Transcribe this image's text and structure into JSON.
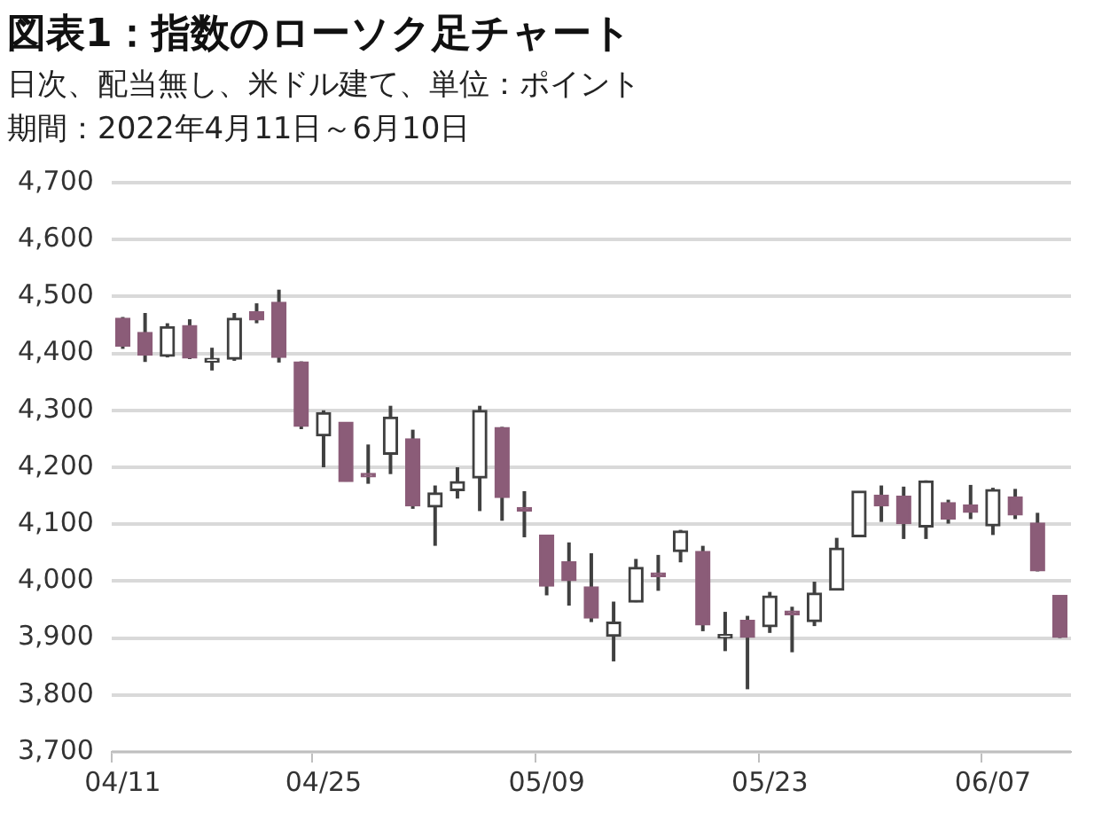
{
  "chart_data": {
    "type": "candlestick",
    "title": "図表1：指数のローソク足チャート",
    "subtitle": "日次、配当無し、米ドル建て、単位：ポイント",
    "annotations": [
      "期間：2022年4月11日～6月10日"
    ],
    "categories": [
      "04/11",
      null,
      null,
      null,
      null,
      null,
      null,
      null,
      null,
      "04/25",
      null,
      null,
      null,
      null,
      null,
      null,
      null,
      null,
      null,
      "05/09",
      null,
      null,
      null,
      null,
      null,
      null,
      null,
      null,
      null,
      "05/23",
      null,
      null,
      null,
      null,
      null,
      null,
      null,
      null,
      null,
      "06/07",
      null,
      null,
      null
    ],
    "ohlc": [
      [
        4462,
        4464,
        4408,
        4413
      ],
      [
        4437,
        4471,
        4385,
        4397
      ],
      [
        4395,
        4453,
        4393,
        4447
      ],
      [
        4449,
        4460,
        4390,
        4392
      ],
      [
        4385,
        4410,
        4370,
        4391
      ],
      [
        4390,
        4471,
        4387,
        4462
      ],
      [
        4473,
        4488,
        4453,
        4459
      ],
      [
        4490,
        4512,
        4384,
        4393
      ],
      [
        4385,
        4386,
        4267,
        4272
      ],
      [
        4255,
        4300,
        4200,
        4296
      ],
      [
        4279,
        4279,
        4175,
        4175
      ],
      [
        4187,
        4240,
        4171,
        4183
      ],
      [
        4223,
        4308,
        4188,
        4288
      ],
      [
        4250,
        4266,
        4127,
        4132
      ],
      [
        4130,
        4168,
        4062,
        4155
      ],
      [
        4159,
        4200,
        4145,
        4175
      ],
      [
        4181,
        4308,
        4123,
        4300
      ],
      [
        4270,
        4271,
        4106,
        4147
      ],
      [
        4128,
        4158,
        4077,
        4123
      ],
      [
        4081,
        4081,
        3975,
        3991
      ],
      [
        4034,
        4068,
        3957,
        4001
      ],
      [
        3990,
        4049,
        3928,
        3935
      ],
      [
        3903,
        3964,
        3859,
        3928
      ],
      [
        3963,
        4039,
        3963,
        4024
      ],
      [
        4013,
        4046,
        3983,
        4008
      ],
      [
        4052,
        4090,
        4033,
        4088
      ],
      [
        4052,
        4062,
        3912,
        3923
      ],
      [
        3900,
        3946,
        3877,
        3901
      ],
      [
        3931,
        3939,
        3810,
        3901
      ],
      [
        3920,
        3981,
        3909,
        3974
      ],
      [
        3942,
        3955,
        3875,
        3941
      ],
      [
        3929,
        3999,
        3921,
        3979
      ],
      [
        3984,
        4076,
        3984,
        4058
      ],
      [
        4078,
        4158,
        4078,
        4158
      ],
      [
        4151,
        4168,
        4104,
        4132
      ],
      [
        4149,
        4166,
        4074,
        4101
      ],
      [
        4095,
        4177,
        4074,
        4176
      ],
      [
        4138,
        4143,
        4101,
        4109
      ],
      [
        4134,
        4169,
        4109,
        4121
      ],
      [
        4097,
        4164,
        4081,
        4161
      ],
      [
        4148,
        4162,
        4109,
        4116
      ],
      [
        4102,
        4120,
        4017,
        4018
      ],
      [
        3975,
        3975,
        3900,
        3901
      ]
    ],
    "colors": [
      "#8b5c78",
      "#8b5c78",
      "#404040",
      "#8b5c78",
      "#404040",
      "#404040",
      "#8b5c78",
      "#8b5c78",
      "#8b5c78",
      "#404040",
      "#8b5c78",
      "#8b5c78",
      "#404040",
      "#8b5c78",
      "#404040",
      "#404040",
      "#404040",
      "#8b5c78",
      "#8b5c78",
      "#8b5c78",
      "#8b5c78",
      "#8b5c78",
      "#404040",
      "#404040",
      "#8b5c78",
      "#404040",
      "#8b5c78",
      "#404040",
      "#8b5c78",
      "#404040",
      "#8b5c78",
      "#404040",
      "#404040",
      "#404040",
      "#8b5c78",
      "#8b5c78",
      "#404040",
      "#8b5c78",
      "#8b5c78",
      "#404040",
      "#8b5c78",
      "#8b5c78",
      "#8b5c78"
    ],
    "ylim": [
      3700,
      4700
    ],
    "yticks": [
      {
        "value": 3700,
        "label": "3,700"
      },
      {
        "value": 3800,
        "label": "3,800"
      },
      {
        "value": 3900,
        "label": "3,900"
      },
      {
        "value": 4000,
        "label": "4,000"
      },
      {
        "value": 4100,
        "label": "4,100"
      },
      {
        "value": 4200,
        "label": "4,200"
      },
      {
        "value": 4300,
        "label": "4,300"
      },
      {
        "value": 4400,
        "label": "4,400"
      },
      {
        "value": 4500,
        "label": "4,500"
      },
      {
        "value": 4600,
        "label": "4,600"
      },
      {
        "value": 4700,
        "label": "4,700"
      }
    ],
    "grid": "y",
    "legend": false
  }
}
